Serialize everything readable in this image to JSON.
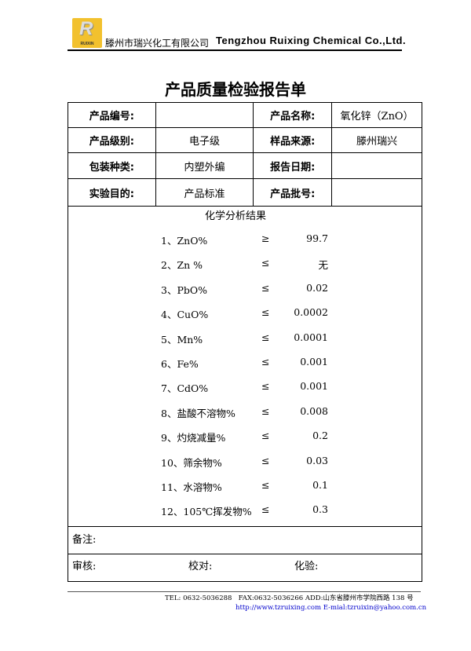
{
  "header": {
    "logo_text": "RUIXIN",
    "company_cn": "滕州市瑞兴化工有限公司",
    "company_en": "Tengzhou Ruixing Chemical Co.,Ltd."
  },
  "title": "产品质量检验报告单",
  "info": [
    [
      {
        "label": "产品编号:",
        "value": ""
      },
      {
        "label": "产品名称:",
        "value": "氧化锌（ZnO）"
      }
    ],
    [
      {
        "label": "产品级别:",
        "value": "电子级"
      },
      {
        "label": "样品来源:",
        "value": "滕州瑞兴"
      }
    ],
    [
      {
        "label": "包装种类:",
        "value": "内塑外编"
      },
      {
        "label": "报告日期:",
        "value": ""
      }
    ],
    [
      {
        "label": "实验目的:",
        "value": "产品标准"
      },
      {
        "label": "产品批号:",
        "value": ""
      }
    ]
  ],
  "results": {
    "title": "化学分析结果",
    "items": [
      {
        "name": "1、ZnO%",
        "op": "≥",
        "value": "99.7"
      },
      {
        "name": "2、Zn %",
        "op": "≤",
        "value": "无"
      },
      {
        "name": "3、PbO%",
        "op": "≤",
        "value": "0.02"
      },
      {
        "name": "4、CuO%",
        "op": "≤",
        "value": "0.0002"
      },
      {
        "name": "5、Mn%",
        "op": "≤",
        "value": "0.0001"
      },
      {
        "name": "6、Fe%",
        "op": "≤",
        "value": "0.001"
      },
      {
        "name": "7、CdO%",
        "op": "≤",
        "value": "0.001"
      },
      {
        "name": "8、盐酸不溶物%",
        "op": "≤",
        "value": "0.008"
      },
      {
        "name": "9、灼烧减量%",
        "op": "≤",
        "value": "0.2"
      },
      {
        "name": "10、筛余物%",
        "op": "≤",
        "value": "0.03"
      },
      {
        "name": "11、水溶物%",
        "op": "≤",
        "value": "0.1"
      },
      {
        "name": "12、105℃挥发物%",
        "op": "≤",
        "value": "0.3"
      }
    ]
  },
  "notes_label": "备注:",
  "audit": {
    "review": "审核:",
    "proof": "校对:",
    "test": "化验:"
  },
  "footer": {
    "tel": "TEL: 0632-5036288",
    "fax": "FAX:0632-5036266",
    "addr": "ADD:山东省滕州市学院西路 138 号",
    "web": "http://www.tzruixing.com",
    "email": "E-mial:tzruixin@yahoo.com.cn"
  }
}
